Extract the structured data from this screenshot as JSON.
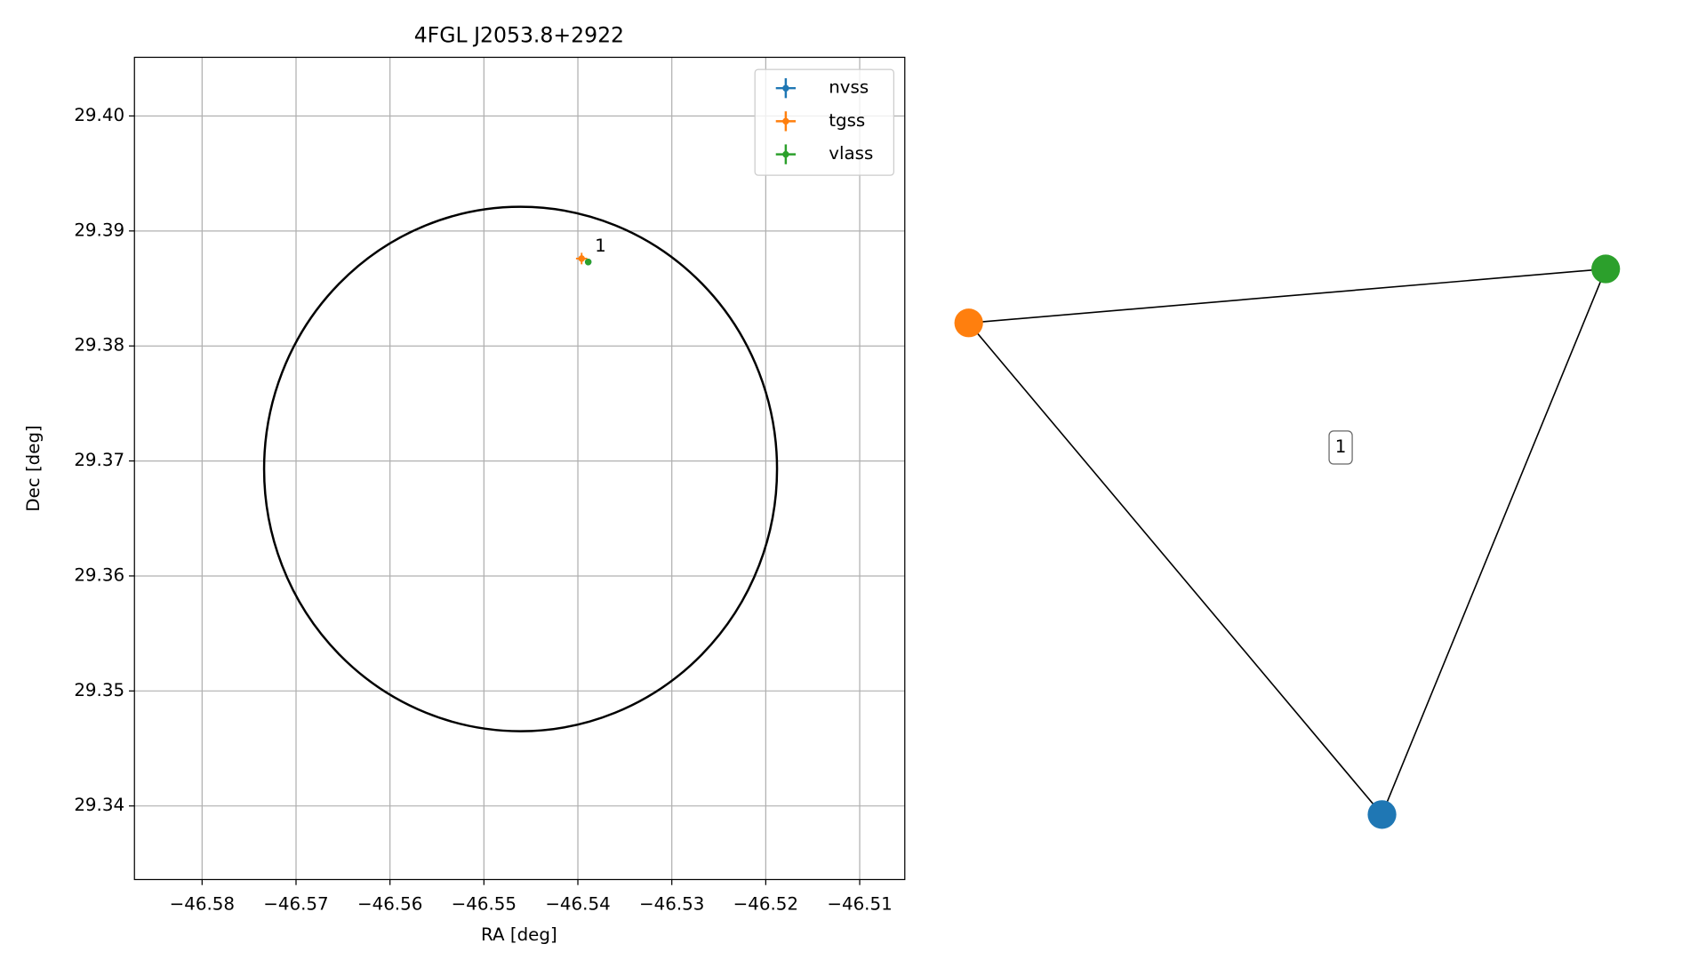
{
  "chart_data": [
    {
      "type": "scatter",
      "title": "4FGL J2053.8+2922",
      "xlabel": "RA [deg]",
      "ylabel": "Dec [deg]",
      "xlim": [
        -46.5872,
        -46.5052
      ],
      "ylim": [
        29.3336,
        29.4051
      ],
      "xticks": [
        {
          "value": -46.58,
          "label": "−46.58"
        },
        {
          "value": -46.57,
          "label": "−46.57"
        },
        {
          "value": -46.56,
          "label": "−46.56"
        },
        {
          "value": -46.55,
          "label": "−46.55"
        },
        {
          "value": -46.54,
          "label": "−46.54"
        },
        {
          "value": -46.53,
          "label": "−46.53"
        },
        {
          "value": -46.52,
          "label": "−46.52"
        },
        {
          "value": -46.51,
          "label": "−46.51"
        }
      ],
      "yticks": [
        29.34,
        29.35,
        29.36,
        29.37,
        29.38,
        29.39,
        {
          "value": 29.4,
          "label": "29.40"
        }
      ],
      "grid": true,
      "legend": "upper right",
      "series": [
        {
          "name": "nvss",
          "color": "#1f77b4",
          "x": [
            -46.5389
          ],
          "values": [
            29.3873
          ],
          "xerr": [
            0.0002
          ],
          "yerr": [
            0.0002
          ]
        },
        {
          "name": "tgss",
          "color": "#ff7f0e",
          "x": [
            -46.5396
          ],
          "values": [
            29.3876
          ],
          "xerr": [
            0.0006
          ],
          "yerr": [
            0.0005
          ]
        },
        {
          "name": "vlass",
          "color": "#2ca02c",
          "x": [
            -46.5389
          ],
          "values": [
            29.3873
          ],
          "xerr": [
            0.0001
          ],
          "yerr": [
            0.0001
          ]
        }
      ],
      "circle": {
        "x": -46.5461,
        "y": 29.3693,
        "rx": 0.0273,
        "ry": 0.0228,
        "color": "#000000"
      },
      "annotation": "1"
    },
    {
      "type": "network",
      "nodes": [
        {
          "color": "#1f77b4"
        },
        {
          "color": "#ff7f0e"
        },
        {
          "color": "#2ca02c"
        }
      ],
      "edges": [
        [
          0,
          1
        ],
        [
          1,
          2
        ],
        [
          2,
          0
        ]
      ],
      "label": "1"
    }
  ]
}
